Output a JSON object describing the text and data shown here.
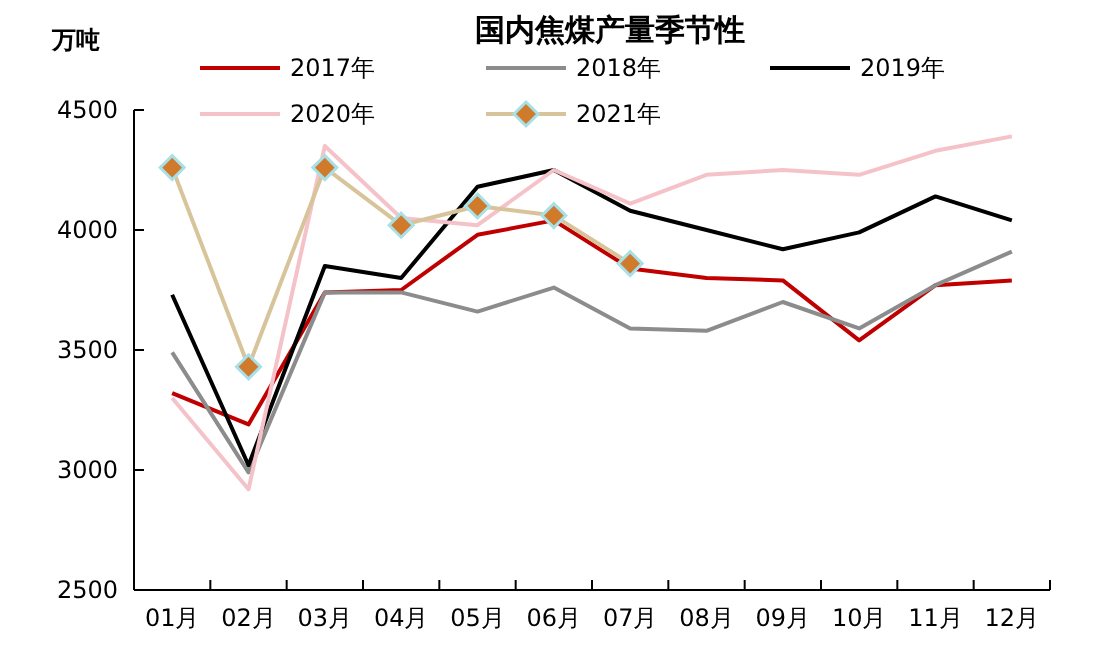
{
  "chart_data": {
    "type": "line",
    "title": "国内焦煤产量季节性",
    "ylabel": "万吨",
    "categories": [
      "01月",
      "02月",
      "03月",
      "04月",
      "05月",
      "06月",
      "07月",
      "08月",
      "09月",
      "10月",
      "11月",
      "12月"
    ],
    "ylim": [
      2500,
      4500
    ],
    "yticks": [
      2500,
      3000,
      3500,
      4000,
      4500
    ],
    "grid": false,
    "legend": "top",
    "series": [
      {
        "name": "2017年",
        "color": "#c00000",
        "values": [
          3320,
          3190,
          3740,
          3750,
          3980,
          4040,
          3840,
          3800,
          3790,
          3540,
          3770,
          3790
        ]
      },
      {
        "name": "2018年",
        "color": "#8c8c8c",
        "values": [
          3490,
          2990,
          3740,
          3740,
          3660,
          3760,
          3590,
          3580,
          3700,
          3590,
          3770,
          3910
        ]
      },
      {
        "name": "2019年",
        "color": "#000000",
        "values": [
          3730,
          3020,
          3850,
          3800,
          4180,
          4250,
          4080,
          4000,
          3920,
          3990,
          4140,
          4040
        ]
      },
      {
        "name": "2020年",
        "color": "#f4c2c8",
        "values": [
          3300,
          2920,
          4350,
          4050,
          4020,
          4250,
          4110,
          4230,
          4250,
          4230,
          4330,
          4390
        ]
      },
      {
        "name": "2021年",
        "color": "#d8c49a",
        "marker": "diamond",
        "values": [
          4260,
          3430,
          4260,
          4020,
          4100,
          4060,
          3860,
          null,
          null,
          null,
          null,
          null
        ]
      }
    ]
  }
}
